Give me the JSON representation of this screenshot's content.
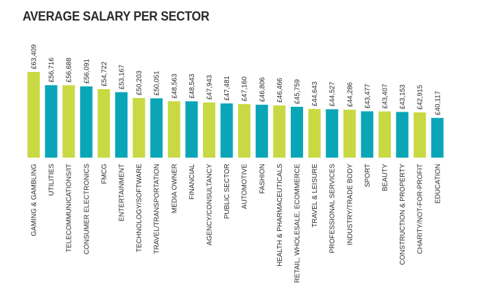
{
  "chart_data": {
    "type": "bar",
    "title": "AVERAGE SALARY PER SECTOR",
    "xlabel": "",
    "ylabel": "",
    "ylim": [
      20000,
      65000
    ],
    "categories": [
      "GAMING & GAMBLING",
      "UTILITIES",
      "TELECOMMUNICATIONS/IT",
      "CONSUMER ELECTRONICS",
      "FMCG",
      "ENTERTAINMENT",
      "TECHNOLOGY/SOFTWARE",
      "TRAVEL/TRANSPORTATION",
      "MEDIA OWNER",
      "FINANCIAL",
      "AGENCY/CONSULTANCY",
      "PUBLIC SECTOR",
      "AUTOMOTIVE",
      "FASHION",
      "HEALTH & PHARMACEUTICALS",
      "RETAIL, WHOLESALE, ECOMMERCE",
      "TRAVEL & LEISURE",
      "PROFESSIONAL SERVICES",
      "INDUSTRY/TRADE BODY",
      "SPORT",
      "BEAUTY",
      "CONSTRUCTION & PROPERTY",
      "CHARITY/NOT-FOR-PROFIT",
      "EDUCATION"
    ],
    "values": [
      63409,
      56716,
      56688,
      56091,
      54722,
      53167,
      50203,
      50051,
      48563,
      48543,
      47943,
      47481,
      47160,
      46806,
      46466,
      45759,
      44643,
      44527,
      44286,
      43477,
      43407,
      43153,
      42915,
      40117
    ],
    "value_labels": [
      "£63,409",
      "£56,716",
      "£56,688",
      "£56,091",
      "£54,722",
      "£53,167",
      "£50,203",
      "£50,051",
      "£48,563",
      "£48,543",
      "£47,943",
      "£47,481",
      "£47,160",
      "£46,806",
      "£46,466",
      "£45,759",
      "£44,643",
      "£44,527",
      "£44,286",
      "£43,477",
      "£43,407",
      "£43,153",
      "£42,915",
      "£40,117"
    ],
    "bar_colors": [
      "green",
      "teal",
      "green",
      "teal",
      "green",
      "teal",
      "green",
      "teal",
      "green",
      "teal",
      "green",
      "teal",
      "green",
      "teal",
      "green",
      "teal",
      "green",
      "teal",
      "green",
      "teal",
      "green",
      "teal",
      "green",
      "teal"
    ],
    "colors": {
      "green": "#c9d943",
      "teal": "#0aa6b8"
    },
    "grid": false,
    "legend": "none"
  }
}
